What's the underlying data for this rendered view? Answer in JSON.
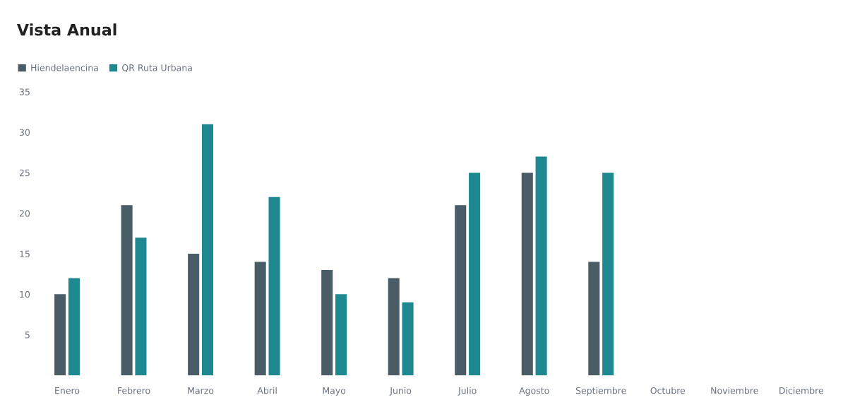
{
  "chart_data": {
    "type": "bar",
    "title": "Vista Anual",
    "categories": [
      "Enero",
      "Febrero",
      "Marzo",
      "Abril",
      "Mayo",
      "Junio",
      "Julio",
      "Agosto",
      "Septiembre",
      "Octubre",
      "Noviembre",
      "Diciembre"
    ],
    "series": [
      {
        "name": "Hiendelaencina",
        "color": "#4a5d67",
        "values": [
          10,
          21,
          15,
          14,
          13,
          12,
          21,
          25,
          14,
          null,
          null,
          null
        ]
      },
      {
        "name": "QR Ruta Urbana",
        "color": "#1e8891",
        "values": [
          12,
          17,
          31,
          22,
          10,
          9,
          25,
          27,
          25,
          null,
          null,
          null
        ]
      }
    ],
    "ylim": [
      0,
      35
    ],
    "yticks": [
      5,
      10,
      15,
      20,
      25,
      30,
      35
    ],
    "grid": false,
    "legend": "top left"
  }
}
